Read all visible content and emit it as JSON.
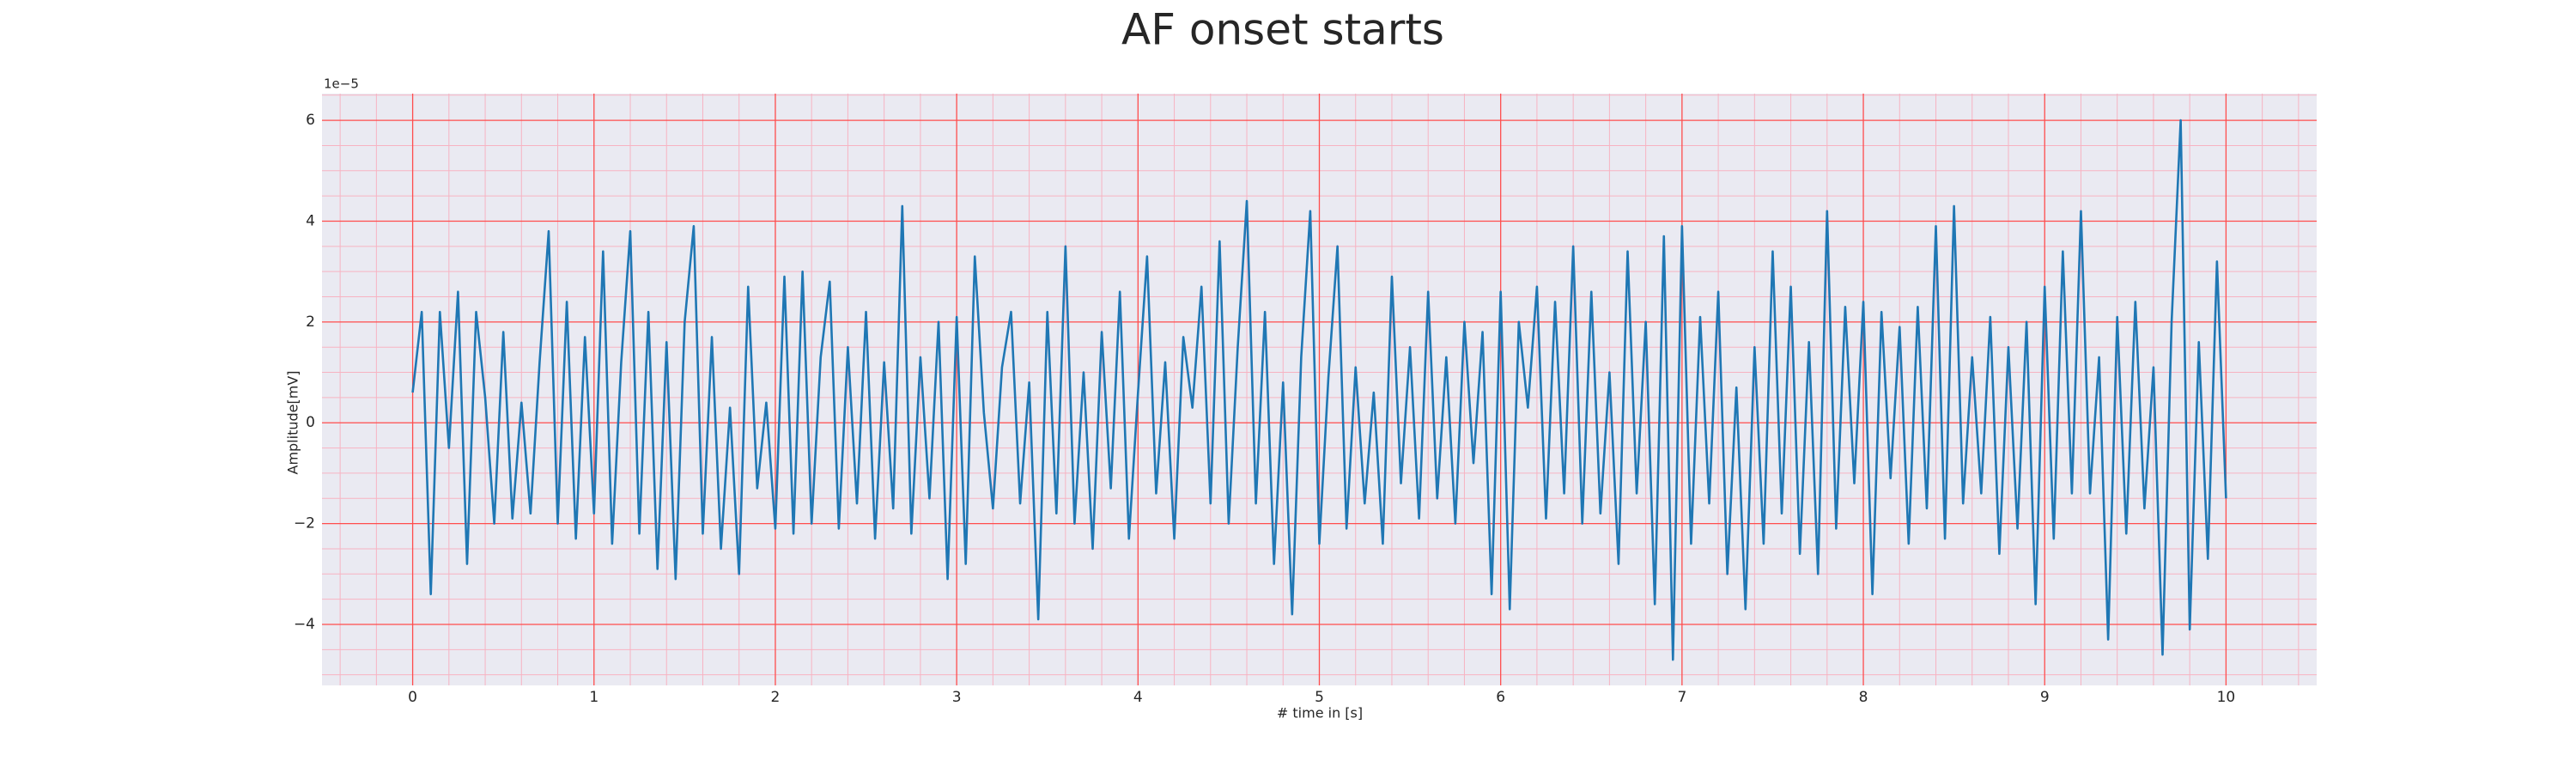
{
  "chart_data": {
    "type": "line",
    "title": "AF onset starts",
    "x_label": "# time in [s]",
    "y_label": "Amplitude[mV]",
    "y_offset_label": "1e−5",
    "xlim": [
      -0.5,
      10.5
    ],
    "ylim": [
      -5.21,
      6.53
    ],
    "xticks": [
      0,
      1,
      2,
      3,
      4,
      5,
      6,
      7,
      8,
      9,
      10
    ],
    "yticks": [
      {
        "value": -4,
        "label": "−4"
      },
      {
        "value": -2,
        "label": "−2"
      },
      0,
      2,
      4,
      6
    ],
    "xminorticks": [
      -0.4,
      -0.2,
      0.2,
      0.4,
      0.6,
      0.8,
      1.2,
      1.4,
      1.6,
      1.8,
      2.2,
      2.4,
      2.6,
      2.8,
      3.2,
      3.4,
      3.6,
      3.8,
      4.2,
      4.4,
      4.6,
      4.8,
      5.2,
      5.4,
      5.6,
      5.8,
      6.2,
      6.4,
      6.6,
      6.8,
      7.2,
      7.4,
      7.6,
      7.8,
      8.2,
      8.4,
      8.6,
      8.8,
      9.2,
      9.4,
      9.6,
      9.8,
      10.2,
      10.4
    ],
    "yminorticks": [
      -5,
      -4.5,
      -3.5,
      -3,
      -2.5,
      -1.5,
      -1,
      -0.5,
      0.5,
      1,
      1.5,
      2.5,
      3,
      3.5,
      4.5,
      5,
      5.5,
      6.5
    ],
    "grid": true,
    "grid_color": "#ff4d4d",
    "minor_grid_color": "#f7b3c2",
    "background": "#eaeaf2",
    "series": [
      {
        "name": "signal",
        "color": "#1f77b4",
        "x": [
          0,
          0.05,
          0.1,
          0.15,
          0.2,
          0.25,
          0.3,
          0.35,
          0.4,
          0.45,
          0.5,
          0.55,
          0.6,
          0.65,
          0.7,
          0.75,
          0.8,
          0.85,
          0.9,
          0.95,
          1,
          1.05,
          1.1,
          1.15,
          1.2,
          1.25,
          1.3,
          1.35,
          1.4,
          1.45,
          1.5,
          1.55,
          1.6,
          1.65,
          1.7,
          1.75,
          1.8,
          1.85,
          1.9,
          1.95,
          2,
          2.05,
          2.1,
          2.15,
          2.2,
          2.25,
          2.3,
          2.35,
          2.4,
          2.45,
          2.5,
          2.55,
          2.6,
          2.65,
          2.7,
          2.75,
          2.8,
          2.85,
          2.9,
          2.95,
          3,
          3.05,
          3.1,
          3.15,
          3.2,
          3.25,
          3.3,
          3.35,
          3.4,
          3.45,
          3.5,
          3.55,
          3.6,
          3.65,
          3.7,
          3.75,
          3.8,
          3.85,
          3.9,
          3.95,
          4,
          4.05,
          4.1,
          4.15,
          4.2,
          4.25,
          4.3,
          4.35,
          4.4,
          4.45,
          4.5,
          4.55,
          4.6,
          4.65,
          4.7,
          4.75,
          4.8,
          4.85,
          4.9,
          4.95,
          5,
          5.05,
          5.1,
          5.15,
          5.2,
          5.25,
          5.3,
          5.35,
          5.4,
          5.45,
          5.5,
          5.55,
          5.6,
          5.65,
          5.7,
          5.75,
          5.8,
          5.85,
          5.9,
          5.95,
          6,
          6.05,
          6.1,
          6.15,
          6.2,
          6.25,
          6.3,
          6.35,
          6.4,
          6.45,
          6.5,
          6.55,
          6.6,
          6.65,
          6.7,
          6.75,
          6.8,
          6.85,
          6.9,
          6.95,
          7,
          7.05,
          7.1,
          7.15,
          7.2,
          7.25,
          7.3,
          7.35,
          7.4,
          7.45,
          7.5,
          7.55,
          7.6,
          7.65,
          7.7,
          7.75,
          7.8,
          7.85,
          7.9,
          7.95,
          8,
          8.05,
          8.1,
          8.15,
          8.2,
          8.25,
          8.3,
          8.35,
          8.4,
          8.45,
          8.5,
          8.55,
          8.6,
          8.65,
          8.7,
          8.75,
          8.8,
          8.85,
          8.9,
          8.95,
          9,
          9.05,
          9.1,
          9.15,
          9.2,
          9.25,
          9.3,
          9.35,
          9.4,
          9.45,
          9.5,
          9.55,
          9.6,
          9.65,
          9.7,
          9.75,
          9.8,
          9.85,
          9.9,
          9.95,
          10
        ],
        "values": [
          0.6,
          2.2,
          -3.4,
          2.2,
          -0.5,
          2.6,
          -2.8,
          2.2,
          0.5,
          -2.0,
          1.8,
          -1.9,
          0.4,
          -1.8,
          1.2,
          3.8,
          -2.0,
          2.4,
          -2.3,
          1.7,
          -1.8,
          3.4,
          -2.4,
          1.2,
          3.8,
          -2.2,
          2.2,
          -2.9,
          1.6,
          -3.1,
          2.0,
          3.9,
          -2.2,
          1.7,
          -2.5,
          0.3,
          -3.0,
          2.7,
          -1.3,
          0.4,
          -2.1,
          2.9,
          -2.2,
          3.0,
          -2.0,
          1.3,
          2.8,
          -2.1,
          1.5,
          -1.6,
          2.2,
          -2.3,
          1.2,
          -1.7,
          4.3,
          -2.2,
          1.3,
          -1.5,
          2.0,
          -3.1,
          2.1,
          -2.8,
          3.3,
          0.2,
          -1.7,
          1.1,
          2.2,
          -1.6,
          0.8,
          -3.9,
          2.2,
          -1.8,
          3.5,
          -2.0,
          1.0,
          -2.5,
          1.8,
          -1.3,
          2.6,
          -2.3,
          0.6,
          3.3,
          -1.4,
          1.2,
          -2.3,
          1.7,
          0.3,
          2.7,
          -1.6,
          3.6,
          -2.0,
          1.5,
          4.4,
          -1.6,
          2.2,
          -2.8,
          0.8,
          -3.8,
          1.3,
          4.2,
          -2.4,
          0.9,
          3.5,
          -2.1,
          1.1,
          -1.6,
          0.6,
          -2.4,
          2.9,
          -1.2,
          1.5,
          -1.9,
          2.6,
          -1.5,
          1.3,
          -2.0,
          2.0,
          -0.8,
          1.8,
          -3.4,
          2.6,
          -3.7,
          2.0,
          0.3,
          2.7,
          -1.9,
          2.4,
          -1.4,
          3.5,
          -2.0,
          2.6,
          -1.8,
          1.0,
          -2.8,
          3.4,
          -1.4,
          2.0,
          -3.6,
          3.7,
          -4.7,
          3.9,
          -2.4,
          2.1,
          -1.6,
          2.6,
          -3.0,
          0.7,
          -3.7,
          1.5,
          -2.4,
          3.4,
          -1.8,
          2.7,
          -2.6,
          1.6,
          -3.0,
          4.2,
          -2.1,
          2.3,
          -1.2,
          2.4,
          -3.4,
          2.2,
          -1.1,
          1.9,
          -2.4,
          2.3,
          -1.7,
          3.9,
          -2.3,
          4.3,
          -1.6,
          1.3,
          -1.4,
          2.1,
          -2.6,
          1.5,
          -2.1,
          2.0,
          -3.6,
          2.7,
          -2.3,
          3.4,
          -1.4,
          4.2,
          -1.4,
          1.3,
          -4.3,
          2.1,
          -2.2,
          2.4,
          -1.7,
          1.1,
          -4.6,
          2.0,
          6.0,
          -4.1,
          1.6,
          -2.7,
          3.2,
          -1.5
        ]
      }
    ]
  }
}
